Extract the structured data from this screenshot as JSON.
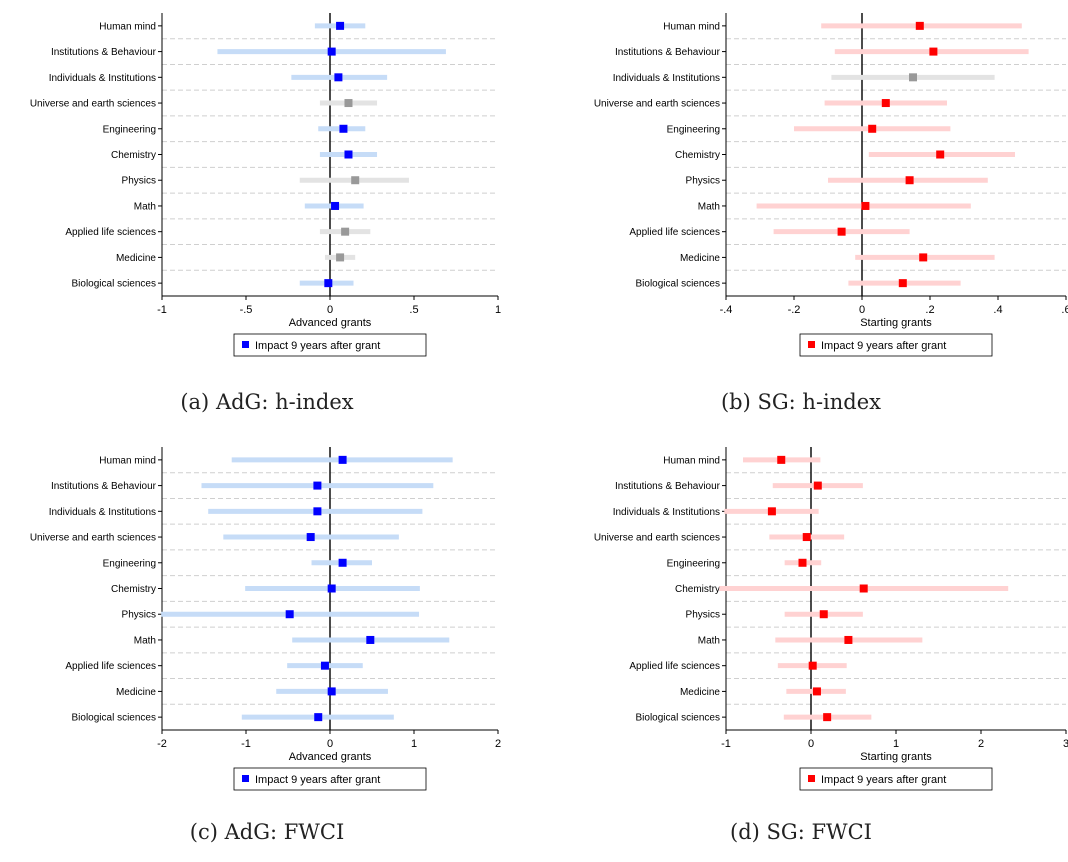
{
  "chart_data": [
    {
      "type": "scatter",
      "panel": "a",
      "caption_label": "(a)",
      "caption_text": "AdG: h-index",
      "xlabel": "Advanced grants",
      "xticks": [
        "-1",
        "-.5",
        "0",
        ".5",
        "1"
      ],
      "xlim": [
        -1,
        1
      ],
      "legend": "Impact 9 years after grant",
      "categories": [
        "Human mind",
        "Institutions & Behaviour",
        "Individuals & Institutions",
        "Universe and earth sciences",
        "Engineering",
        "Chemistry",
        "Physics",
        "Math",
        "Applied life sciences",
        "Medicine",
        "Biological sciences"
      ],
      "estimate": [
        0.06,
        0.01,
        0.05,
        0.11,
        0.08,
        0.11,
        0.15,
        0.03,
        0.09,
        0.06,
        -0.01
      ],
      "ci_low": [
        -0.09,
        -0.67,
        -0.23,
        -0.06,
        -0.07,
        -0.06,
        -0.18,
        -0.15,
        -0.06,
        -0.03,
        -0.18
      ],
      "ci_high": [
        0.21,
        0.69,
        0.34,
        0.28,
        0.21,
        0.28,
        0.47,
        0.2,
        0.24,
        0.15,
        0.14
      ],
      "significant": [
        true,
        true,
        true,
        false,
        true,
        true,
        false,
        true,
        false,
        false,
        true
      ],
      "colors": {
        "sig_marker": "#0000ff",
        "sig_ci": "#c6dcf7",
        "ns_marker": "#999999",
        "ns_ci": "#e3e3e3"
      }
    },
    {
      "type": "scatter",
      "panel": "b",
      "caption_label": "(b)",
      "caption_text": "SG: h-index",
      "xlabel": "Starting grants",
      "xticks": [
        "-.4",
        "-.2",
        "0",
        ".2",
        ".4",
        ".6"
      ],
      "xlim": [
        -0.4,
        0.6
      ],
      "legend": "Impact 9 years after grant",
      "categories": [
        "Human mind",
        "Institutions & Behaviour",
        "Individuals & Institutions",
        "Universe and earth sciences",
        "Engineering",
        "Chemistry",
        "Physics",
        "Math",
        "Applied life sciences",
        "Medicine",
        "Biological sciences"
      ],
      "estimate": [
        0.17,
        0.21,
        0.15,
        0.07,
        0.03,
        0.23,
        0.14,
        0.01,
        -0.06,
        0.18,
        0.12
      ],
      "ci_low": [
        -0.12,
        -0.08,
        -0.09,
        -0.11,
        -0.2,
        0.02,
        -0.1,
        -0.31,
        -0.26,
        -0.02,
        -0.04
      ],
      "ci_high": [
        0.47,
        0.49,
        0.39,
        0.25,
        0.26,
        0.45,
        0.37,
        0.32,
        0.14,
        0.39,
        0.29
      ],
      "significant": [
        true,
        true,
        false,
        true,
        true,
        true,
        true,
        true,
        true,
        true,
        true
      ],
      "colors": {
        "sig_marker": "#ff0000",
        "sig_ci": "#ffd2d2",
        "ns_marker": "#999999",
        "ns_ci": "#e3e3e3"
      }
    },
    {
      "type": "scatter",
      "panel": "c",
      "caption_label": "(c)",
      "caption_text": "AdG: FWCI",
      "xlabel": "Advanced grants",
      "xticks": [
        "-2",
        "-1",
        "0",
        "1",
        "2"
      ],
      "xlim": [
        -2,
        2
      ],
      "legend": "Impact 9 years after grant",
      "categories": [
        "Human mind",
        "Institutions & Behaviour",
        "Individuals & Institutions",
        "Universe and earth sciences",
        "Engineering",
        "Chemistry",
        "Physics",
        "Math",
        "Applied life sciences",
        "Medicine",
        "Biological sciences"
      ],
      "estimate": [
        0.15,
        -0.15,
        -0.15,
        -0.23,
        0.15,
        0.02,
        -0.48,
        0.48,
        -0.06,
        0.02,
        -0.14
      ],
      "ci_low": [
        -1.17,
        -1.53,
        -1.45,
        -1.27,
        -0.22,
        -1.01,
        -2.01,
        -0.45,
        -0.51,
        -0.64,
        -1.05
      ],
      "ci_high": [
        1.46,
        1.23,
        1.1,
        0.82,
        0.5,
        1.07,
        1.06,
        1.42,
        0.39,
        0.69,
        0.76
      ],
      "significant": [
        true,
        true,
        true,
        true,
        true,
        true,
        true,
        true,
        true,
        true,
        true
      ],
      "colors": {
        "sig_marker": "#0000ff",
        "sig_ci": "#c6dcf7",
        "ns_marker": "#999999",
        "ns_ci": "#e3e3e3"
      }
    },
    {
      "type": "scatter",
      "panel": "d",
      "caption_label": "(d)",
      "caption_text": "SG: FWCI",
      "xlabel": "Starting grants",
      "xticks": [
        "-1",
        "0",
        "1",
        "2",
        "3"
      ],
      "xlim": [
        -1,
        3
      ],
      "legend": "Impact 9 years after grant",
      "categories": [
        "Human mind",
        "Institutions & Behaviour",
        "Individuals & Institutions",
        "Universe and earth sciences",
        "Engineering",
        "Chemistry",
        "Physics",
        "Math",
        "Applied life sciences",
        "Medicine",
        "Biological sciences"
      ],
      "estimate": [
        -0.35,
        0.08,
        -0.46,
        -0.05,
        -0.1,
        0.62,
        0.15,
        0.44,
        0.02,
        0.07,
        0.19
      ],
      "ci_low": [
        -0.8,
        -0.45,
        -1.02,
        -0.49,
        -0.31,
        -1.08,
        -0.31,
        -0.42,
        -0.39,
        -0.29,
        -0.32
      ],
      "ci_high": [
        0.11,
        0.61,
        0.09,
        0.39,
        0.12,
        2.32,
        0.61,
        1.31,
        0.42,
        0.41,
        0.71
      ],
      "significant": [
        true,
        true,
        true,
        true,
        true,
        true,
        true,
        true,
        true,
        true,
        true
      ],
      "colors": {
        "sig_marker": "#ff0000",
        "sig_ci": "#ffd2d2",
        "ns_marker": "#999999",
        "ns_ci": "#e3e3e3"
      }
    }
  ]
}
